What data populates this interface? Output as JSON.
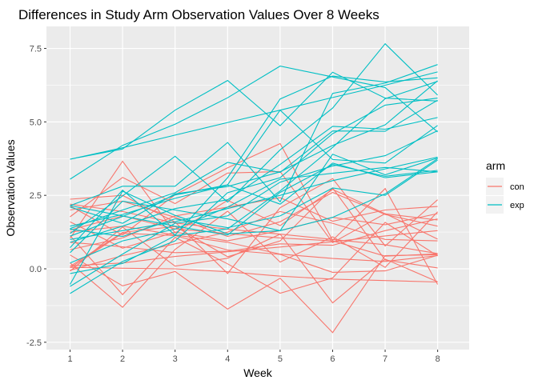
{
  "chart_data": {
    "type": "line",
    "title": "Differences in Study Arm Observation Values Over 8 Weeks",
    "xlabel": "Week",
    "ylabel": "Observation Values",
    "x": [
      1,
      2,
      3,
      4,
      5,
      6,
      7,
      8
    ],
    "x_ticks": [
      "1",
      "2",
      "3",
      "4",
      "5",
      "6",
      "7",
      "8"
    ],
    "y_ticks": [
      -2.5,
      0.0,
      2.5,
      5.0,
      7.5
    ],
    "y_tick_labels": [
      "-2.5",
      "0.0",
      "2.5",
      "5.0",
      "7.5"
    ],
    "xlim": [
      0.55,
      8.6
    ],
    "ylim": [
      -2.75,
      8.25
    ],
    "grid": true,
    "legend": {
      "title": "arm",
      "position": "right",
      "entries": [
        {
          "label": "con",
          "color": "#F8766D"
        },
        {
          "label": "exp",
          "color": "#00BFC4"
        }
      ]
    },
    "colors": {
      "con": "#F8766D",
      "exp": "#00BFC4",
      "panel": "#EBEBEB",
      "grid": "#FFFFFF"
    },
    "series": [
      {
        "group": "con",
        "values": [
          0.2,
          -1.31,
          0.66,
          1.96,
          0.23,
          1.09,
          0.05,
          1.94
        ]
      },
      {
        "group": "con",
        "values": [
          1.13,
          -0.88,
          1.07,
          0.17,
          -0.83,
          -0.31,
          1.58,
          0.44
        ]
      },
      {
        "group": "con",
        "values": [
          1.77,
          3.11,
          2.22,
          3.26,
          3.31,
          0.89,
          1.88,
          1.01
        ]
      },
      {
        "group": "con",
        "values": [
          1.04,
          3.66,
          1.22,
          2.33,
          1.47,
          2.7,
          1.87,
          1.66
        ]
      },
      {
        "group": "con",
        "values": [
          0.47,
          -0.58,
          -0.09,
          -1.37,
          -0.32,
          -2.17,
          0.45,
          0.48
        ]
      },
      {
        "group": "con",
        "values": [
          2.37,
          2.5,
          1.59,
          -0.16,
          2.08,
          3.07,
          0.78,
          2.35
        ]
      },
      {
        "group": "con",
        "values": [
          0.03,
          1.21,
          1.13,
          0.64,
          0.49,
          -0.12,
          -0.07,
          0.46
        ]
      },
      {
        "group": "con",
        "values": [
          -0.08,
          1.42,
          0.09,
          0.36,
          1.18,
          -1.16,
          0.33,
          -0.44
        ]
      },
      {
        "group": "con",
        "values": [
          0.08,
          1.24,
          1.44,
          0.41,
          0.95,
          2.75,
          0.3,
          0.03
        ]
      },
      {
        "group": "con",
        "values": [
          2.14,
          1.15,
          2.52,
          3.44,
          4.26,
          0.97,
          2.73,
          -0.53
        ]
      },
      {
        "group": "con",
        "values": [
          1.32,
          1.8,
          1.36,
          1.2,
          1.05,
          0.95,
          0.43,
          0.51
        ]
      },
      {
        "group": "con",
        "values": [
          0.1,
          0.2,
          0.42,
          0.58,
          0.74,
          0.92,
          1.12,
          1.3
        ]
      },
      {
        "group": "con",
        "values": [
          2.2,
          1.95,
          1.56,
          1.35,
          1.18,
          1.0,
          0.82,
          0.52
        ]
      },
      {
        "group": "con",
        "values": [
          0.65,
          1.05,
          1.8,
          2.1,
          2.42,
          1.62,
          2.0,
          2.12
        ]
      },
      {
        "group": "con",
        "values": [
          1.6,
          0.7,
          1.25,
          0.95,
          1.3,
          1.75,
          1.5,
          1.88
        ]
      },
      {
        "group": "con",
        "values": [
          0.05,
          0.02,
          0.0,
          -0.1,
          -0.25,
          -0.35,
          -0.4,
          -0.45
        ]
      },
      {
        "group": "con",
        "values": [
          0.9,
          0.75,
          0.55,
          0.6,
          0.85,
          0.8,
          1.3,
          1.7
        ]
      },
      {
        "group": "con",
        "values": [
          2.0,
          2.3,
          1.75,
          1.1,
          1.6,
          2.6,
          1.85,
          1.45
        ]
      },
      {
        "group": "con",
        "values": [
          1.25,
          1.45,
          1.15,
          0.9,
          0.5,
          0.35,
          0.25,
          0.45
        ]
      },
      {
        "group": "con",
        "values": [
          -0.05,
          0.45,
          0.85,
          1.25,
          1.95,
          1.55,
          1.0,
          0.95
        ]
      },
      {
        "group": "exp",
        "values": [
          3.73,
          4.08,
          5.4,
          6.41,
          4.87,
          6.69,
          5.81,
          5.71
        ]
      },
      {
        "group": "exp",
        "values": [
          3.05,
          4.2,
          4.92,
          5.82,
          6.9,
          6.53,
          6.17,
          4.66
        ]
      },
      {
        "group": "exp",
        "values": [
          -0.84,
          0.25,
          0.95,
          2.59,
          3.1,
          4.6,
          5.57,
          5.81
        ]
      },
      {
        "group": "exp",
        "values": [
          1.2,
          2.48,
          3.83,
          2.27,
          4.05,
          5.47,
          7.66,
          5.91
        ]
      },
      {
        "group": "exp",
        "values": [
          2.15,
          2.81,
          2.81,
          4.3,
          2.28,
          5.97,
          6.32,
          6.95
        ]
      },
      {
        "group": "exp",
        "values": [
          0.72,
          2.68,
          1.15,
          3.1,
          5.78,
          6.56,
          6.36,
          6.5
        ]
      },
      {
        "group": "exp",
        "values": [
          1.37,
          2.0,
          2.59,
          3.62,
          3.28,
          4.69,
          4.68,
          5.74
        ]
      },
      {
        "group": "exp",
        "values": [
          -0.53,
          2.64,
          1.82,
          1.19,
          1.3,
          3.9,
          3.2,
          3.77
        ]
      },
      {
        "group": "exp",
        "values": [
          1.11,
          1.78,
          2.51,
          2.86,
          5.4,
          3.72,
          3.6,
          4.88
        ]
      },
      {
        "group": "exp",
        "values": [
          -0.16,
          0.18,
          1.13,
          1.36,
          2.65,
          4.13,
          5.79,
          6.38
        ]
      },
      {
        "group": "exp",
        "values": [
          3.73,
          4.12,
          4.55,
          4.98,
          5.4,
          5.83,
          6.25,
          6.7
        ]
      },
      {
        "group": "exp",
        "values": [
          0.9,
          1.45,
          2.05,
          2.35,
          3.55,
          4.85,
          4.75,
          5.15
        ]
      },
      {
        "group": "exp",
        "values": [
          2.1,
          1.55,
          2.55,
          2.8,
          3.3,
          4.2,
          4.9,
          6.4
        ]
      },
      {
        "group": "exp",
        "values": [
          1.0,
          1.3,
          1.6,
          2.05,
          2.5,
          3.0,
          3.4,
          3.8
        ]
      },
      {
        "group": "exp",
        "values": [
          -0.6,
          0.5,
          1.55,
          1.8,
          2.95,
          3.5,
          3.85,
          4.7
        ]
      },
      {
        "group": "exp",
        "values": [
          1.35,
          1.1,
          1.7,
          1.4,
          1.8,
          2.75,
          2.5,
          3.7
        ]
      },
      {
        "group": "exp",
        "values": [
          0.2,
          0.95,
          1.35,
          2.1,
          3.05,
          3.25,
          3.45,
          3.3
        ]
      },
      {
        "group": "exp",
        "values": [
          1.45,
          1.85,
          2.4,
          2.85,
          2.2,
          3.6,
          3.1,
          3.3
        ]
      },
      {
        "group": "exp",
        "values": [
          0.55,
          2.3,
          2.0,
          1.7,
          1.3,
          1.75,
          2.55,
          3.75
        ]
      },
      {
        "group": "exp",
        "values": [
          2.15,
          1.8,
          1.45,
          1.15,
          2.6,
          3.55,
          3.15,
          3.35
        ]
      }
    ]
  }
}
